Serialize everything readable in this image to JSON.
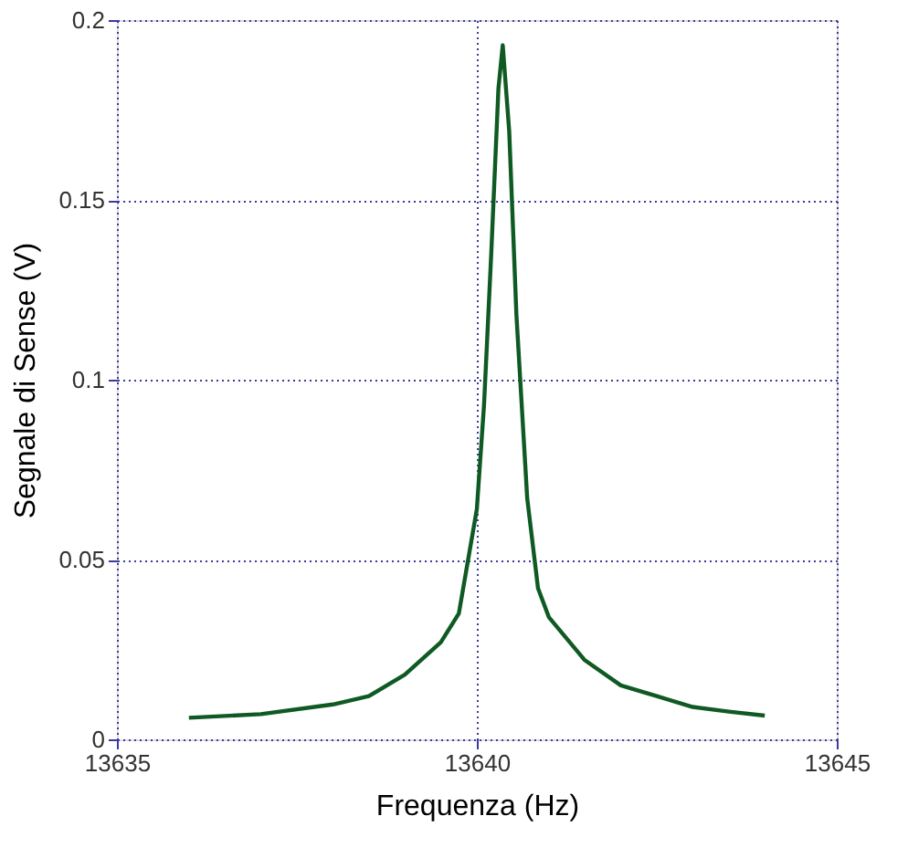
{
  "chart_data": {
    "type": "line",
    "xlabel": "Frequenza (Hz)",
    "ylabel": "Segnale di Sense (V)",
    "x": [
      13636.0,
      13637.0,
      13638.0,
      13638.5,
      13639.0,
      13639.5,
      13639.75,
      13640.0,
      13640.1,
      13640.2,
      13640.3,
      13640.36,
      13640.45,
      13640.55,
      13640.7,
      13640.85,
      13641.0,
      13641.5,
      13642.0,
      13642.5,
      13643.0,
      13643.5,
      13644.0
    ],
    "series": [
      {
        "color": "#0f5a23",
        "values": [
          0.006,
          0.007,
          0.0097,
          0.012,
          0.018,
          0.027,
          0.035,
          0.064,
          0.093,
          0.135,
          0.181,
          0.193,
          0.169,
          0.118,
          0.067,
          0.042,
          0.034,
          0.022,
          0.015,
          0.012,
          0.009,
          0.0077,
          0.0066
        ]
      }
    ],
    "xlim": [
      13635,
      13645
    ],
    "xticks": [
      13635,
      13640,
      13645
    ],
    "ylim": [
      0,
      0.2
    ],
    "yticks": [
      0,
      0.05,
      0.1,
      0.15,
      0.2
    ],
    "grid": true,
    "marker": "none",
    "line_style": "solid",
    "legend": false
  }
}
